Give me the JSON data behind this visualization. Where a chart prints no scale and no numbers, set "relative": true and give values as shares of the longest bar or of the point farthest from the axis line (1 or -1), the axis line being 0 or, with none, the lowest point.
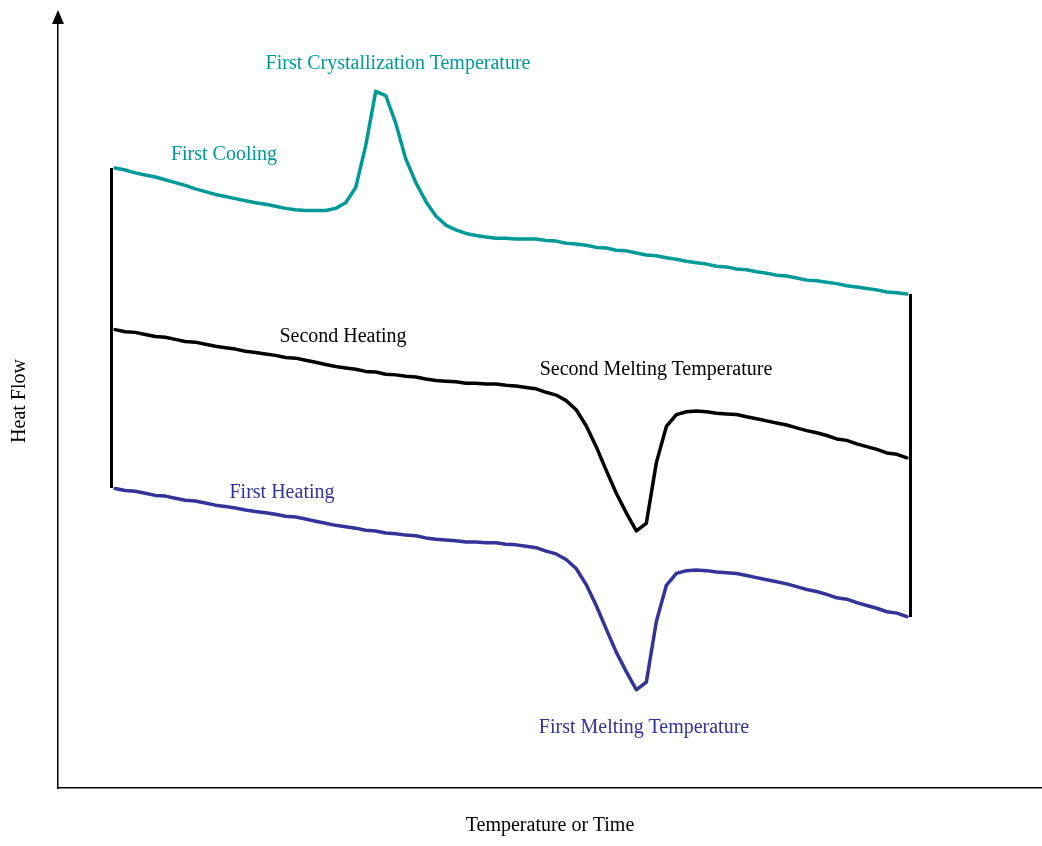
{
  "chart_data": {
    "type": "line",
    "relative": true,
    "xlabel": "Temperature or Time",
    "ylabel": "Heat Flow",
    "grid": false,
    "legend": false,
    "categories": [
      null,
      null,
      null,
      null,
      null,
      null,
      null,
      null,
      null,
      null,
      null,
      null,
      null,
      null,
      null,
      null,
      null,
      null,
      null,
      null,
      null,
      null,
      null,
      null,
      null,
      null,
      null,
      null,
      null,
      null,
      null,
      null,
      null,
      null,
      null,
      null,
      null,
      null,
      null,
      null,
      null,
      null,
      null,
      null,
      null,
      null,
      null,
      null,
      null,
      null,
      null,
      null,
      null,
      null,
      null,
      null,
      null,
      null,
      null,
      null,
      null,
      null,
      null,
      null,
      null,
      null,
      null,
      null,
      null,
      null,
      null,
      null,
      null,
      null,
      null,
      null,
      null,
      null,
      null,
      null
    ],
    "series": [
      {
        "name": "First Cooling",
        "color": "#009999",
        "values": [
          0.89,
          0.887,
          0.883,
          0.88,
          0.877,
          0.873,
          0.869,
          0.865,
          0.86,
          0.856,
          0.852,
          0.849,
          0.846,
          0.843,
          0.84,
          0.838,
          0.835,
          0.832,
          0.83,
          0.829,
          0.829,
          0.829,
          0.832,
          0.84,
          0.862,
          0.922,
          1.0,
          0.994,
          0.954,
          0.903,
          0.869,
          0.842,
          0.821,
          0.808,
          0.801,
          0.796,
          0.793,
          0.791,
          0.789,
          0.789,
          0.788,
          0.788,
          0.788,
          0.786,
          0.785,
          0.782,
          0.781,
          0.779,
          0.776,
          0.775,
          0.772,
          0.771,
          0.768,
          0.765,
          0.764,
          0.761,
          0.759,
          0.756,
          0.754,
          0.752,
          0.749,
          0.748,
          0.745,
          0.744,
          0.741,
          0.739,
          0.736,
          0.735,
          0.732,
          0.729,
          0.728,
          0.726,
          0.724,
          0.721,
          0.719,
          0.717,
          0.715,
          0.712,
          0.711,
          0.709
        ]
      },
      {
        "name": "Second Heating",
        "color": "#000000",
        "values": [
          0.658,
          0.655,
          0.654,
          0.651,
          0.648,
          0.647,
          0.644,
          0.641,
          0.64,
          0.637,
          0.634,
          0.632,
          0.63,
          0.627,
          0.625,
          0.623,
          0.621,
          0.618,
          0.617,
          0.614,
          0.611,
          0.608,
          0.605,
          0.603,
          0.601,
          0.598,
          0.597,
          0.594,
          0.593,
          0.591,
          0.59,
          0.587,
          0.585,
          0.584,
          0.583,
          0.581,
          0.581,
          0.58,
          0.58,
          0.578,
          0.577,
          0.575,
          0.573,
          0.568,
          0.564,
          0.556,
          0.543,
          0.52,
          0.49,
          0.456,
          0.423,
          0.395,
          0.369,
          0.38,
          0.467,
          0.519,
          0.536,
          0.54,
          0.541,
          0.54,
          0.538,
          0.537,
          0.536,
          0.533,
          0.53,
          0.527,
          0.524,
          0.521,
          0.517,
          0.513,
          0.51,
          0.506,
          0.501,
          0.499,
          0.494,
          0.49,
          0.486,
          0.481,
          0.479,
          0.474
        ]
      },
      {
        "name": "First Heating",
        "color": "#333399",
        "values": [
          0.43,
          0.427,
          0.426,
          0.423,
          0.42,
          0.419,
          0.416,
          0.413,
          0.412,
          0.409,
          0.406,
          0.404,
          0.402,
          0.399,
          0.397,
          0.395,
          0.393,
          0.39,
          0.389,
          0.386,
          0.383,
          0.38,
          0.377,
          0.375,
          0.373,
          0.37,
          0.369,
          0.366,
          0.365,
          0.363,
          0.362,
          0.359,
          0.357,
          0.356,
          0.355,
          0.353,
          0.353,
          0.352,
          0.352,
          0.35,
          0.349,
          0.347,
          0.345,
          0.34,
          0.336,
          0.328,
          0.315,
          0.292,
          0.262,
          0.228,
          0.195,
          0.167,
          0.141,
          0.152,
          0.239,
          0.291,
          0.308,
          0.312,
          0.313,
          0.312,
          0.31,
          0.309,
          0.308,
          0.305,
          0.302,
          0.299,
          0.296,
          0.293,
          0.289,
          0.285,
          0.282,
          0.278,
          0.273,
          0.271,
          0.266,
          0.262,
          0.258,
          0.253,
          0.251,
          0.246
        ]
      }
    ],
    "annotations": [
      "First Crystallization Temperature",
      "Second Melting Temperature",
      "First Melting Temperature"
    ]
  }
}
